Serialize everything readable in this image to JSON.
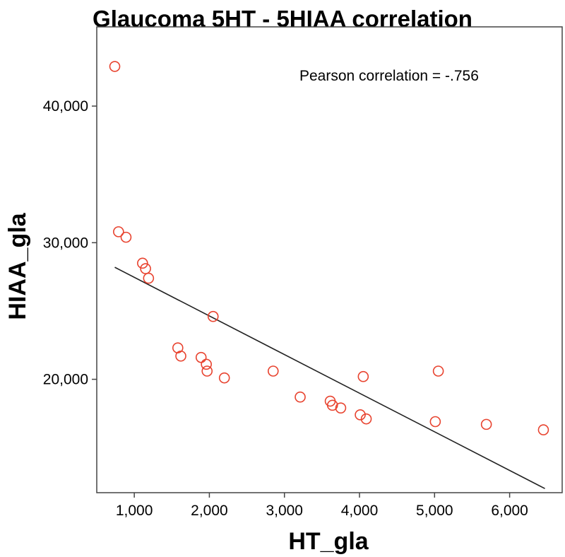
{
  "chart_data": {
    "type": "scatter",
    "title": "Glaucoma 5HT - 5HIAA correlation",
    "xlabel": "HT_gla",
    "ylabel": "HIAA_gla",
    "xlim": [
      500,
      6700
    ],
    "ylim": [
      11700,
      45800
    ],
    "xticks": [
      1000,
      2000,
      3000,
      4000,
      5000,
      6000
    ],
    "xtick_labels": [
      "1,000",
      "2,000",
      "3,000",
      "4,000",
      "5,000",
      "6,000"
    ],
    "yticks": [
      20000,
      30000,
      40000
    ],
    "ytick_labels": [
      "20,000",
      "30,000",
      "40,000"
    ],
    "annotation": "Pearson correlation = -.756",
    "grid": false,
    "legend": "none",
    "marker_color": "#e8432f",
    "line_color": "#222222",
    "points": [
      {
        "x": 740,
        "y": 42900
      },
      {
        "x": 790,
        "y": 30800
      },
      {
        "x": 890,
        "y": 30400
      },
      {
        "x": 1110,
        "y": 28500
      },
      {
        "x": 1150,
        "y": 28100
      },
      {
        "x": 1190,
        "y": 27400
      },
      {
        "x": 1580,
        "y": 22300
      },
      {
        "x": 1620,
        "y": 21700
      },
      {
        "x": 1890,
        "y": 21600
      },
      {
        "x": 1960,
        "y": 21100
      },
      {
        "x": 1970,
        "y": 20600
      },
      {
        "x": 2050,
        "y": 24600
      },
      {
        "x": 2200,
        "y": 20100
      },
      {
        "x": 2850,
        "y": 20600
      },
      {
        "x": 3210,
        "y": 18700
      },
      {
        "x": 3610,
        "y": 18400
      },
      {
        "x": 3640,
        "y": 18100
      },
      {
        "x": 3750,
        "y": 17900
      },
      {
        "x": 4010,
        "y": 17400
      },
      {
        "x": 4050,
        "y": 20200
      },
      {
        "x": 4090,
        "y": 17100
      },
      {
        "x": 5010,
        "y": 16900
      },
      {
        "x": 5050,
        "y": 20600
      },
      {
        "x": 5690,
        "y": 16700
      },
      {
        "x": 6450,
        "y": 16300
      }
    ],
    "fit_line": [
      {
        "x": 740,
        "y": 28200
      },
      {
        "x": 6470,
        "y": 12000
      }
    ]
  }
}
